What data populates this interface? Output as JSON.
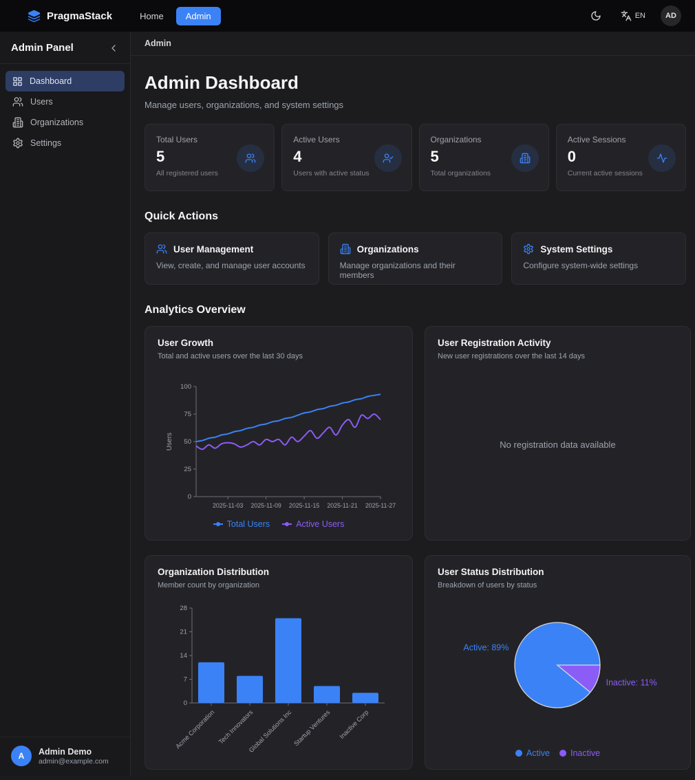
{
  "navbar": {
    "brand": "PragmaStack",
    "logo_icon": "layers-icon",
    "links": [
      {
        "label": "Home",
        "active": false
      },
      {
        "label": "Admin",
        "active": true
      }
    ],
    "theme_toggle_icon": "moon-icon",
    "language_icon": "languages-icon",
    "language": "EN",
    "avatar_initials": "AD"
  },
  "sidebar": {
    "title": "Admin Panel",
    "collapse_icon": "chevron-left-icon",
    "items": [
      {
        "label": "Dashboard",
        "icon": "grid-icon",
        "active": true
      },
      {
        "label": "Users",
        "icon": "users-icon",
        "active": false
      },
      {
        "label": "Organizations",
        "icon": "building-icon",
        "active": false
      },
      {
        "label": "Settings",
        "icon": "gear-icon",
        "active": false
      }
    ],
    "user": {
      "initial": "A",
      "name": "Admin Demo",
      "email": "admin@example.com"
    }
  },
  "breadcrumb": "Admin",
  "header": {
    "title": "Admin Dashboard",
    "subtitle": "Manage users, organizations, and system settings"
  },
  "stats": [
    {
      "label": "Total Users",
      "value": "5",
      "description": "All registered users",
      "icon": "users-icon"
    },
    {
      "label": "Active Users",
      "value": "4",
      "description": "Users with active status",
      "icon": "user-check-icon"
    },
    {
      "label": "Organizations",
      "value": "5",
      "description": "Total organizations",
      "icon": "building-icon"
    },
    {
      "label": "Active Sessions",
      "value": "0",
      "description": "Current active sessions",
      "icon": "activity-icon"
    }
  ],
  "quick_actions": {
    "heading": "Quick Actions",
    "cards": [
      {
        "title": "User Management",
        "description": "View, create, and manage user accounts",
        "icon": "users-icon"
      },
      {
        "title": "Organizations",
        "description": "Manage organizations and their members",
        "icon": "building-icon"
      },
      {
        "title": "System Settings",
        "description": "Configure system-wide settings",
        "icon": "gear-icon"
      }
    ]
  },
  "analytics_heading": "Analytics Overview",
  "colors": {
    "accent_blue": "#3b82f6",
    "accent_purple": "#8b5cf6",
    "axis": "#6e6e77",
    "tick_text": "#a1a1aa",
    "pie_stroke": "#d1d5db"
  },
  "chart_data": [
    {
      "id": "user-growth",
      "type": "line",
      "title": "User Growth",
      "subtitle": "Total and active users over the last 30 days",
      "ylabel": "Users",
      "ylim": [
        0,
        100
      ],
      "yticks": [
        0,
        25,
        50,
        75,
        100
      ],
      "x_start": "2025-10-29",
      "x_end": "2025-11-27",
      "x_tick_labels": [
        "2025-11-03",
        "2025-11-09",
        "2025-11-15",
        "2025-11-21",
        "2025-11-27"
      ],
      "x_tick_indices": [
        5,
        11,
        17,
        23,
        29
      ],
      "series": [
        {
          "name": "Total Users",
          "color": "#3b82f6",
          "values": [
            50,
            51,
            53,
            54,
            56,
            57,
            59,
            60,
            62,
            63,
            65,
            66,
            68,
            69,
            71,
            72,
            74,
            76,
            77,
            79,
            80,
            82,
            83,
            85,
            86,
            88,
            89,
            91,
            92,
            93
          ]
        },
        {
          "name": "Active Users",
          "color": "#8b5cf6",
          "values": [
            46,
            43,
            47,
            44,
            48,
            49,
            48,
            45,
            47,
            50,
            47,
            52,
            50,
            52,
            47,
            54,
            50,
            55,
            60,
            53,
            58,
            63,
            56,
            65,
            70,
            63,
            74,
            71,
            75,
            70
          ]
        }
      ],
      "legend_position": "bottom"
    },
    {
      "id": "registration-activity",
      "type": "line",
      "title": "User Registration Activity",
      "subtitle": "New user registrations over the last 14 days",
      "empty_text": "No registration data available",
      "series": []
    },
    {
      "id": "org-distribution",
      "type": "bar",
      "title": "Organization Distribution",
      "subtitle": "Member count by organization",
      "categories": [
        "Acme Corporation",
        "Tech Innovators",
        "Global Solutions Inc",
        "Startup Ventures",
        "Inactive Corp"
      ],
      "values": [
        12,
        8,
        25,
        5,
        3
      ],
      "ylim": [
        0,
        28
      ],
      "yticks": [
        0,
        7,
        14,
        21,
        28
      ],
      "color": "#3b82f6"
    },
    {
      "id": "user-status",
      "type": "pie",
      "title": "User Status Distribution",
      "subtitle": "Breakdown of users by status",
      "slices": [
        {
          "label": "Active",
          "pct": 89,
          "color": "#3b82f6",
          "callout": "Active: 89%"
        },
        {
          "label": "Inactive",
          "pct": 11,
          "color": "#8b5cf6",
          "callout": "Inactive: 11%"
        }
      ],
      "legend_position": "bottom"
    }
  ]
}
